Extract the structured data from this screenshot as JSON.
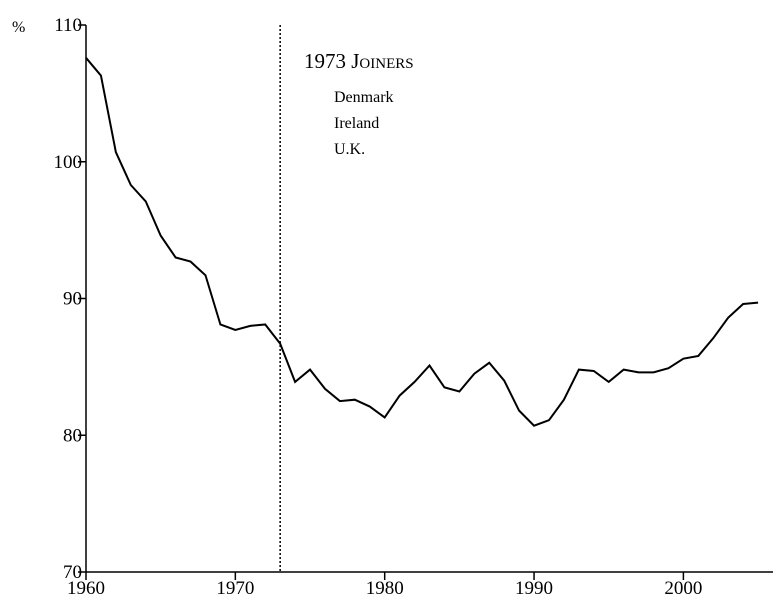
{
  "chart_data": {
    "type": "line",
    "y_unit": "%",
    "annotation": {
      "title": "1973 Joiners",
      "items": [
        "Denmark",
        "Ireland",
        "U.K."
      ],
      "x": 1973
    },
    "x": [
      1960,
      1961,
      1962,
      1963,
      1964,
      1965,
      1966,
      1967,
      1968,
      1969,
      1970,
      1971,
      1972,
      1973,
      1974,
      1975,
      1976,
      1977,
      1978,
      1979,
      1980,
      1981,
      1982,
      1983,
      1984,
      1985,
      1986,
      1987,
      1988,
      1989,
      1990,
      1991,
      1992,
      1993,
      1994,
      1995,
      1996,
      1997,
      1998,
      1999,
      2000,
      2001,
      2002,
      2003,
      2004,
      2005
    ],
    "series": [
      {
        "color": "#000000",
        "values": [
          107.6,
          106.3,
          100.7,
          98.3,
          97.1,
          94.6,
          93.0,
          92.7,
          91.7,
          88.1,
          87.7,
          88.0,
          88.1,
          86.7,
          83.9,
          84.8,
          83.4,
          82.5,
          82.6,
          82.1,
          81.3,
          82.9,
          83.9,
          85.1,
          83.5,
          83.2,
          84.5,
          85.3,
          84.0,
          81.8,
          80.7,
          81.1,
          82.6,
          84.8,
          84.7,
          83.9,
          84.8,
          84.6,
          84.6,
          84.9,
          85.6,
          85.8,
          87.1,
          88.6,
          89.6,
          89.7
        ]
      }
    ],
    "xlim": [
      1960,
      2006
    ],
    "xticks": [
      1960,
      1970,
      1980,
      1990,
      2000
    ],
    "ylim": [
      70,
      110
    ],
    "yticks": [
      70,
      80,
      90,
      100,
      110
    ]
  }
}
